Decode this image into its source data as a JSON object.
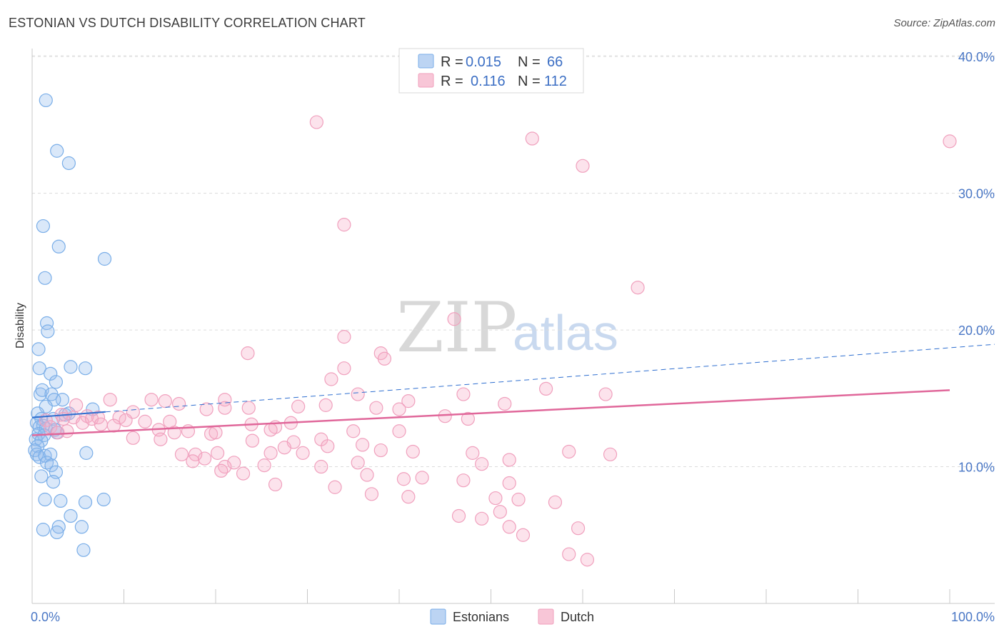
{
  "header": {
    "title": "ESTONIAN VS DUTCH DISABILITY CORRELATION CHART",
    "source": "Source: ZipAtlas.com"
  },
  "legend": {
    "r_label": "R =",
    "n_label": "N =",
    "series": [
      {
        "name": "Estonians",
        "r": "0.015",
        "n": "66",
        "color": "#7aaee8"
      },
      {
        "name": "Dutch",
        "r": "0.116",
        "n": "112",
        "color": "#f0a0bd"
      }
    ]
  },
  "watermark": {
    "zip": "ZIP",
    "atlas": "atlas"
  },
  "chart_data": {
    "type": "scatter",
    "title": "ESTONIAN VS DUTCH DISABILITY CORRELATION CHART",
    "xlabel": "",
    "ylabel": "Disability",
    "x_tick_labels": [
      "0.0%",
      "100.0%"
    ],
    "y_tick_labels": [
      "10.0%",
      "20.0%",
      "30.0%",
      "40.0%"
    ],
    "y_ticks": [
      10,
      20,
      30,
      40
    ],
    "xlim": [
      0,
      100
    ],
    "ylim": [
      0,
      41
    ],
    "grid": true,
    "legend_position": "top-center",
    "series": [
      {
        "name": "Estonians",
        "color": "#7aaee8",
        "line_color": "#2f6fd0",
        "trend": {
          "x0": 0,
          "y0": 13.6,
          "x1": 100,
          "y1": 18.7,
          "solid_until": 8
        },
        "points": [
          [
            1.5,
            36.8
          ],
          [
            2.7,
            33.1
          ],
          [
            4.0,
            32.2
          ],
          [
            1.2,
            27.6
          ],
          [
            2.9,
            26.1
          ],
          [
            7.9,
            25.2
          ],
          [
            1.4,
            23.8
          ],
          [
            1.6,
            20.5
          ],
          [
            1.7,
            19.9
          ],
          [
            0.7,
            18.6
          ],
          [
            0.8,
            17.2
          ],
          [
            4.2,
            17.3
          ],
          [
            5.8,
            17.2
          ],
          [
            2.0,
            16.8
          ],
          [
            2.6,
            16.2
          ],
          [
            0.9,
            15.3
          ],
          [
            1.1,
            15.6
          ],
          [
            2.1,
            15.3
          ],
          [
            3.3,
            14.9
          ],
          [
            2.4,
            14.9
          ],
          [
            1.5,
            14.4
          ],
          [
            6.6,
            14.2
          ],
          [
            0.6,
            13.9
          ],
          [
            1.0,
            13.5
          ],
          [
            2.3,
            13.5
          ],
          [
            3.6,
            13.8
          ],
          [
            4.0,
            13.9
          ],
          [
            0.5,
            13.2
          ],
          [
            1.2,
            13.0
          ],
          [
            0.8,
            12.9
          ],
          [
            1.5,
            12.8
          ],
          [
            2.5,
            12.7
          ],
          [
            2.7,
            12.5
          ],
          [
            0.7,
            12.4
          ],
          [
            1.3,
            12.3
          ],
          [
            0.4,
            12.0
          ],
          [
            1.0,
            11.9
          ],
          [
            0.6,
            11.5
          ],
          [
            0.3,
            11.2
          ],
          [
            0.5,
            10.9
          ],
          [
            0.8,
            10.7
          ],
          [
            1.4,
            10.8
          ],
          [
            2.0,
            10.9
          ],
          [
            5.9,
            11.0
          ],
          [
            1.6,
            10.3
          ],
          [
            2.1,
            10.1
          ],
          [
            2.6,
            9.6
          ],
          [
            1.0,
            9.3
          ],
          [
            2.3,
            8.9
          ],
          [
            1.4,
            7.6
          ],
          [
            3.1,
            7.5
          ],
          [
            5.8,
            7.4
          ],
          [
            7.8,
            7.6
          ],
          [
            4.2,
            6.4
          ],
          [
            1.2,
            5.4
          ],
          [
            2.9,
            5.6
          ],
          [
            2.7,
            5.2
          ],
          [
            5.4,
            5.6
          ],
          [
            5.6,
            3.9
          ]
        ]
      },
      {
        "name": "Dutch",
        "color": "#f0a0bd",
        "line_color": "#e0679a",
        "trend": {
          "x0": 0,
          "y0": 12.3,
          "x1": 100,
          "y1": 15.6
        },
        "points": [
          [
            31,
            35.2
          ],
          [
            54.5,
            34.0
          ],
          [
            100,
            33.8
          ],
          [
            60,
            32.0
          ],
          [
            34,
            27.7
          ],
          [
            66,
            23.1
          ],
          [
            46,
            20.8
          ],
          [
            34,
            19.5
          ],
          [
            23.5,
            18.3
          ],
          [
            38,
            18.3
          ],
          [
            38.4,
            17.9
          ],
          [
            34,
            17.2
          ],
          [
            32.6,
            16.4
          ],
          [
            56,
            15.7
          ],
          [
            62.5,
            15.3
          ],
          [
            35.5,
            15.3
          ],
          [
            47,
            15.3
          ],
          [
            21,
            14.9
          ],
          [
            8.5,
            14.9
          ],
          [
            13,
            14.9
          ],
          [
            14.5,
            14.8
          ],
          [
            16,
            14.6
          ],
          [
            41,
            14.8
          ],
          [
            51.5,
            14.6
          ],
          [
            4.8,
            14.5
          ],
          [
            21,
            14.3
          ],
          [
            23.6,
            14.3
          ],
          [
            32,
            14.5
          ],
          [
            19,
            14.2
          ],
          [
            29,
            14.4
          ],
          [
            37.5,
            14.3
          ],
          [
            40,
            14.2
          ],
          [
            11,
            14.0
          ],
          [
            3.2,
            13.8
          ],
          [
            4.5,
            13.6
          ],
          [
            1.5,
            13.4
          ],
          [
            3.4,
            13.5
          ],
          [
            6,
            13.7
          ],
          [
            7.2,
            13.6
          ],
          [
            9.5,
            13.6
          ],
          [
            10.2,
            13.4
          ],
          [
            12.3,
            13.3
          ],
          [
            15,
            13.3
          ],
          [
            5.5,
            13.2
          ],
          [
            6.5,
            13.5
          ],
          [
            7.5,
            13.1
          ],
          [
            13.8,
            12.7
          ],
          [
            8.9,
            13.0
          ],
          [
            23.9,
            13.1
          ],
          [
            26.5,
            12.9
          ],
          [
            28.2,
            13.2
          ],
          [
            45,
            13.7
          ],
          [
            47.5,
            13.5
          ],
          [
            17,
            12.6
          ],
          [
            15.5,
            12.5
          ],
          [
            19.5,
            12.4
          ],
          [
            26,
            12.7
          ],
          [
            2,
            12.9
          ],
          [
            2.8,
            12.5
          ],
          [
            3.8,
            12.6
          ],
          [
            20,
            12.5
          ],
          [
            35,
            12.6
          ],
          [
            40,
            12.6
          ],
          [
            11,
            12.1
          ],
          [
            14,
            12.0
          ],
          [
            24,
            11.9
          ],
          [
            28.5,
            11.8
          ],
          [
            31.5,
            12.0
          ],
          [
            32.2,
            11.5
          ],
          [
            36,
            11.6
          ],
          [
            38,
            11.2
          ],
          [
            41.5,
            11.1
          ],
          [
            48,
            11.0
          ],
          [
            26,
            11.0
          ],
          [
            27.5,
            11.4
          ],
          [
            29.5,
            11.0
          ],
          [
            16.3,
            10.9
          ],
          [
            17.8,
            10.9
          ],
          [
            20.2,
            11.0
          ],
          [
            17.5,
            10.4
          ],
          [
            18.8,
            10.6
          ],
          [
            22,
            10.3
          ],
          [
            25.3,
            10.1
          ],
          [
            21,
            10.0
          ],
          [
            31.5,
            10.0
          ],
          [
            35.5,
            10.3
          ],
          [
            49,
            10.2
          ],
          [
            52,
            10.5
          ],
          [
            58.5,
            11.1
          ],
          [
            63,
            10.9
          ],
          [
            20.6,
            9.7
          ],
          [
            23,
            9.5
          ],
          [
            36.5,
            9.4
          ],
          [
            40.5,
            9.1
          ],
          [
            42.5,
            9.2
          ],
          [
            47,
            9.0
          ],
          [
            52,
            8.8
          ],
          [
            26.5,
            8.7
          ],
          [
            33,
            8.5
          ],
          [
            37,
            8.0
          ],
          [
            41,
            7.8
          ],
          [
            50.5,
            7.7
          ],
          [
            53,
            7.6
          ],
          [
            57,
            7.4
          ],
          [
            51,
            6.7
          ],
          [
            46.5,
            6.4
          ],
          [
            49,
            6.2
          ],
          [
            52,
            5.6
          ],
          [
            59.5,
            5.5
          ],
          [
            53.5,
            5.0
          ],
          [
            58.5,
            3.6
          ],
          [
            60.5,
            3.2
          ]
        ]
      }
    ]
  }
}
